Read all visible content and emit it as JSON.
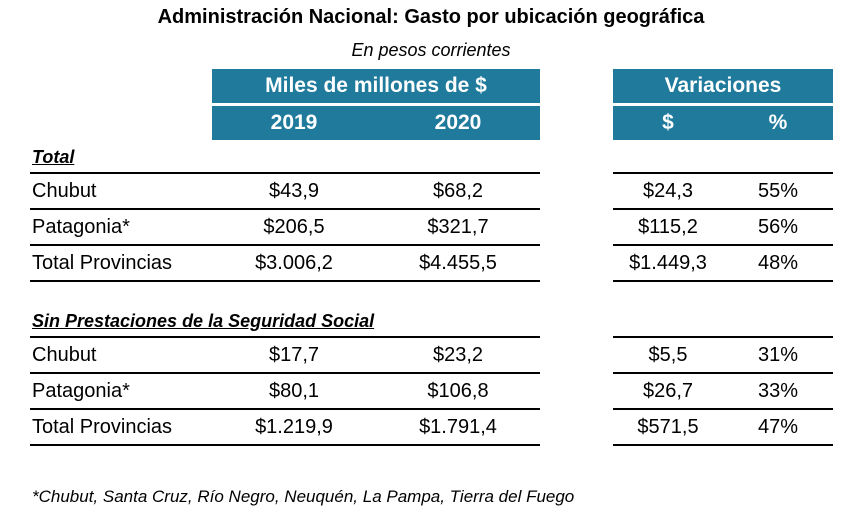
{
  "title": "Administración Nacional: Gasto por ubicación geográfica",
  "subtitle": "En pesos corrientes",
  "header_left": {
    "group": "Miles de millones de $",
    "col1": "2019",
    "col2": "2020"
  },
  "header_right": {
    "group": "Variaciones",
    "col1": "$",
    "col2": "%"
  },
  "sections": [
    {
      "label": "Total",
      "rows": [
        {
          "name": "Chubut",
          "y2019": "$43,9",
          "y2020": "$68,2",
          "var_abs": "$24,3",
          "var_pct": "55%"
        },
        {
          "name": "Patagonia*",
          "y2019": "$206,5",
          "y2020": "$321,7",
          "var_abs": "$115,2",
          "var_pct": "56%"
        },
        {
          "name": "Total Provincias",
          "y2019": "$3.006,2",
          "y2020": "$4.455,5",
          "var_abs": "$1.449,3",
          "var_pct": "48%"
        }
      ]
    },
    {
      "label": "Sin Prestaciones de la Seguridad Social",
      "rows": [
        {
          "name": "Chubut",
          "y2019": "$17,7",
          "y2020": "$23,2",
          "var_abs": "$5,5",
          "var_pct": "31%"
        },
        {
          "name": "Patagonia*",
          "y2019": "$80,1",
          "y2020": "$106,8",
          "var_abs": "$26,7",
          "var_pct": "33%"
        },
        {
          "name": "Total Provincias",
          "y2019": "$1.219,9",
          "y2020": "$1.791,4",
          "var_abs": "$571,5",
          "var_pct": "47%"
        }
      ]
    }
  ],
  "footnote": "*Chubut, Santa Cruz, Río Negro, Neuquén, La Pampa, Tierra del Fuego",
  "colors": {
    "header_bg": "#1f7a9c",
    "header_text": "#ffffff"
  }
}
